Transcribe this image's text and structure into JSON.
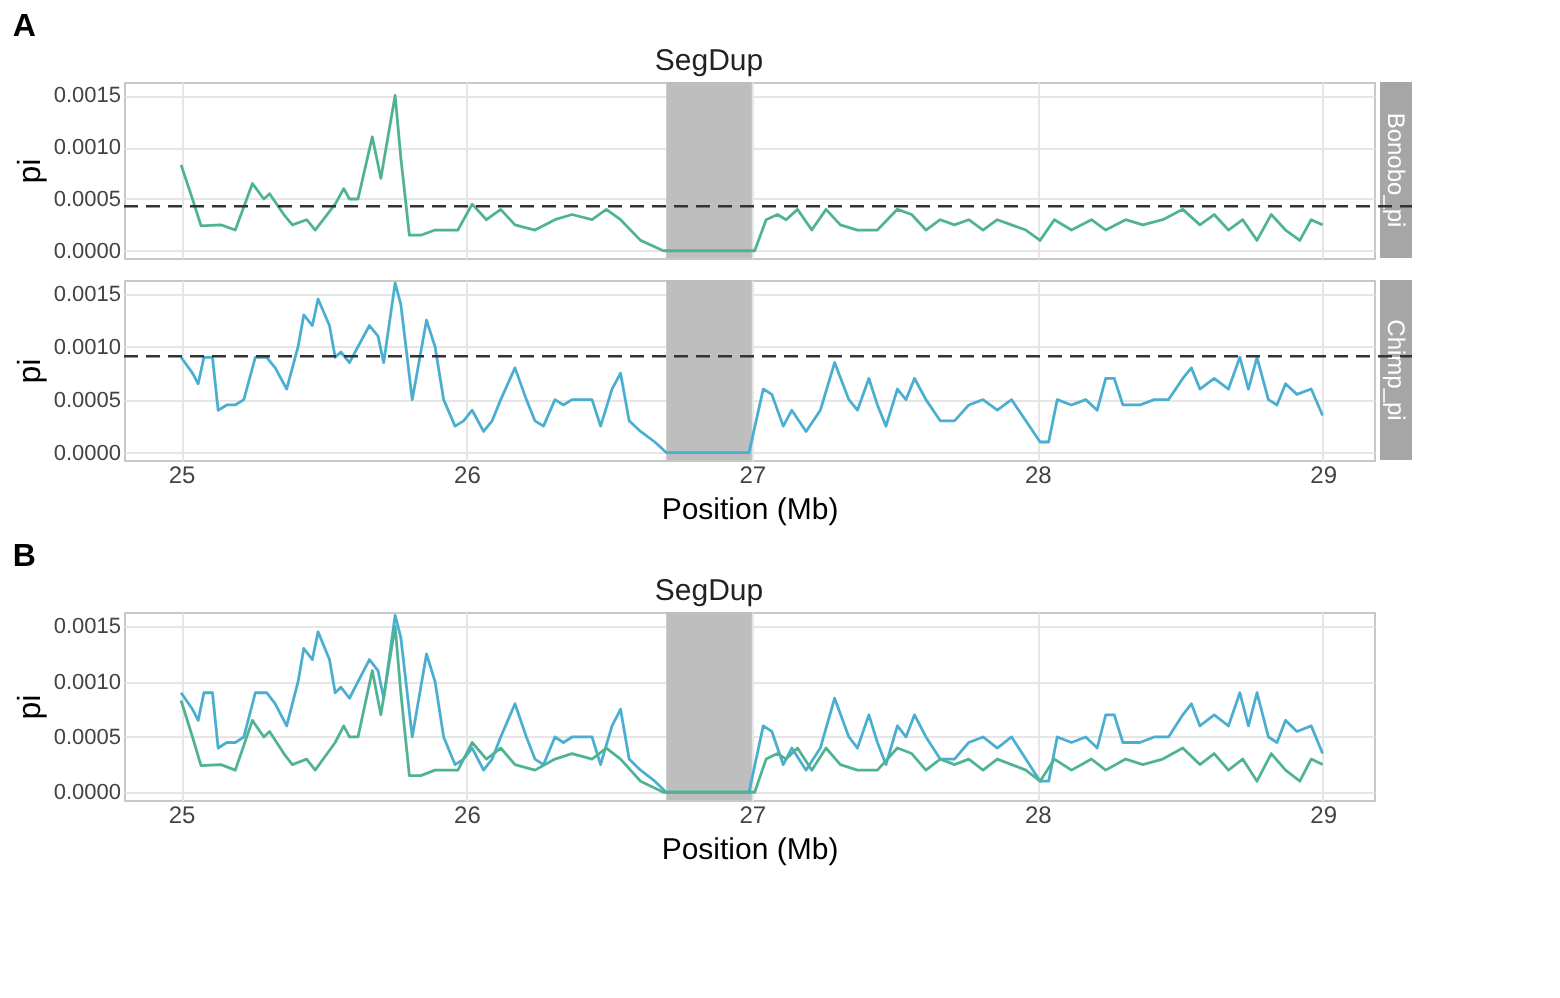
{
  "chart_data": [
    {
      "type": "line",
      "title": "A",
      "ylabel": "pi",
      "xlim": [
        24.8,
        29.18
      ],
      "xticks": [
        25,
        26,
        27,
        28,
        29
      ],
      "ylim": [
        -7e-05,
        0.00163
      ],
      "yticks": [
        {
          "value": 0,
          "label": "0.0000"
        },
        {
          "value": 0.0005,
          "label": "0.0005"
        },
        {
          "value": 0.001,
          "label": "0.0010"
        },
        {
          "value": 0.0015,
          "label": "0.0015"
        }
      ],
      "grid": true,
      "tick_labels": "y",
      "bands": [
        {
          "axis": "x",
          "from": 26.7,
          "to": 27.0,
          "label": "SegDup",
          "color": "#bebebe"
        }
      ],
      "ref_lines": [
        {
          "axis": "y",
          "value": 0.00043,
          "color": "#333333",
          "line_style": "dashed"
        }
      ],
      "series": [
        {
          "name": "Bonobo_pi",
          "color": "#4fb393",
          "x": [
            25.0,
            25.04,
            25.07,
            25.14,
            25.19,
            25.25,
            25.29,
            25.31,
            25.36,
            25.39,
            25.44,
            25.47,
            25.54,
            25.57,
            25.59,
            25.62,
            25.67,
            25.7,
            25.75,
            25.77,
            25.8,
            25.84,
            25.89,
            25.97,
            26.02,
            26.07,
            26.12,
            26.17,
            26.24,
            26.31,
            26.37,
            26.44,
            26.49,
            26.54,
            26.61,
            26.69,
            26.97,
            27.01,
            27.05,
            27.09,
            27.12,
            27.16,
            27.21,
            27.26,
            27.31,
            27.37,
            27.44,
            27.51,
            27.56,
            27.61,
            27.66,
            27.71,
            27.76,
            27.81,
            27.86,
            27.91,
            27.96,
            28.01,
            28.06,
            28.12,
            28.19,
            28.24,
            28.31,
            28.37,
            28.44,
            28.51,
            28.57,
            28.62,
            28.67,
            28.72,
            28.77,
            28.82,
            28.87,
            28.92,
            28.96,
            29.0
          ],
          "values": [
            0.00083,
            0.0005,
            0.00024,
            0.00025,
            0.0002,
            0.00065,
            0.0005,
            0.00055,
            0.00035,
            0.00025,
            0.0003,
            0.0002,
            0.00045,
            0.0006,
            0.0005,
            0.0005,
            0.0011,
            0.0007,
            0.0015,
            0.0009,
            0.00015,
            0.00015,
            0.0002,
            0.0002,
            0.00045,
            0.0003,
            0.0004,
            0.00025,
            0.0002,
            0.0003,
            0.00035,
            0.0003,
            0.0004,
            0.0003,
            0.0001,
            0.0,
            0.0,
            0.0,
            0.0003,
            0.00035,
            0.0003,
            0.0004,
            0.0002,
            0.0004,
            0.00025,
            0.0002,
            0.0002,
            0.0004,
            0.00035,
            0.0002,
            0.0003,
            0.00025,
            0.0003,
            0.0002,
            0.0003,
            0.00025,
            0.0002,
            0.0001,
            0.0003,
            0.0002,
            0.0003,
            0.0002,
            0.0003,
            0.00025,
            0.0003,
            0.0004,
            0.00025,
            0.00035,
            0.0002,
            0.0003,
            0.0001,
            0.00035,
            0.0002,
            0.0001,
            0.0003,
            0.00025
          ]
        }
      ]
    },
    {
      "type": "line",
      "ylabel": "pi",
      "xlabel": "Position (Mb)",
      "xlim": [
        24.8,
        29.18
      ],
      "xticks": [
        25,
        26,
        27,
        28,
        29
      ],
      "ylim": [
        -7e-05,
        0.00163
      ],
      "yticks": [
        {
          "value": 0,
          "label": "0.0000"
        },
        {
          "value": 0.0005,
          "label": "0.0005"
        },
        {
          "value": 0.001,
          "label": "0.0010"
        },
        {
          "value": 0.0015,
          "label": "0.0015"
        }
      ],
      "grid": true,
      "bands": [
        {
          "axis": "x",
          "from": 26.7,
          "to": 27.0,
          "color": "#bebebe"
        }
      ],
      "ref_lines": [
        {
          "axis": "y",
          "value": 0.00091,
          "color": "#333333",
          "line_style": "dashed"
        }
      ],
      "series": [
        {
          "name": "Chimp_pi",
          "color": "#4aaed0",
          "x": [
            25.0,
            25.04,
            25.06,
            25.08,
            25.11,
            25.13,
            25.16,
            25.19,
            25.22,
            25.26,
            25.3,
            25.33,
            25.37,
            25.41,
            25.43,
            25.46,
            25.48,
            25.52,
            25.54,
            25.56,
            25.59,
            25.62,
            25.66,
            25.69,
            25.71,
            25.75,
            25.77,
            25.81,
            25.83,
            25.86,
            25.89,
            25.92,
            25.96,
            25.99,
            26.02,
            26.06,
            26.09,
            26.12,
            26.17,
            26.21,
            26.24,
            26.27,
            26.31,
            26.34,
            26.37,
            26.41,
            26.44,
            26.47,
            26.51,
            26.54,
            26.57,
            26.61,
            26.66,
            26.7,
            26.99,
            27.04,
            27.07,
            27.11,
            27.14,
            27.19,
            27.24,
            27.29,
            27.34,
            27.37,
            27.41,
            27.44,
            27.47,
            27.51,
            27.54,
            27.57,
            27.61,
            27.66,
            27.71,
            27.76,
            27.81,
            27.86,
            27.91,
            27.96,
            28.01,
            28.04,
            28.07,
            28.12,
            28.17,
            28.21,
            28.24,
            28.27,
            28.3,
            28.36,
            28.41,
            28.46,
            28.51,
            28.54,
            28.57,
            28.62,
            28.67,
            28.71,
            28.74,
            28.77,
            28.81,
            28.84,
            28.87,
            28.91,
            28.96,
            29.0
          ],
          "values": [
            0.0009,
            0.00075,
            0.00065,
            0.0009,
            0.0009,
            0.0004,
            0.00045,
            0.00045,
            0.0005,
            0.0009,
            0.0009,
            0.0008,
            0.0006,
            0.001,
            0.0013,
            0.0012,
            0.00145,
            0.0012,
            0.0009,
            0.00095,
            0.00085,
            0.001,
            0.0012,
            0.0011,
            0.00085,
            0.0016,
            0.0014,
            0.0005,
            0.0008,
            0.00125,
            0.001,
            0.0005,
            0.00025,
            0.0003,
            0.0004,
            0.0002,
            0.0003,
            0.0005,
            0.0008,
            0.0005,
            0.0003,
            0.00025,
            0.0005,
            0.00045,
            0.0005,
            0.0005,
            0.0005,
            0.00025,
            0.0006,
            0.00075,
            0.0003,
            0.0002,
            0.0001,
            0.0,
            0.0,
            0.0006,
            0.00055,
            0.00025,
            0.0004,
            0.0002,
            0.0004,
            0.00085,
            0.0005,
            0.0004,
            0.0007,
            0.00045,
            0.00025,
            0.0006,
            0.0005,
            0.0007,
            0.0005,
            0.0003,
            0.0003,
            0.00045,
            0.0005,
            0.0004,
            0.0005,
            0.0003,
            0.0001,
            0.0001,
            0.0005,
            0.00045,
            0.0005,
            0.0004,
            0.0007,
            0.0007,
            0.00045,
            0.00045,
            0.0005,
            0.0005,
            0.0007,
            0.0008,
            0.0006,
            0.0007,
            0.0006,
            0.0009,
            0.0006,
            0.0009,
            0.0005,
            0.00045,
            0.00065,
            0.00055,
            0.0006,
            0.00035
          ]
        }
      ]
    },
    {
      "type": "line",
      "title": "B",
      "ylabel": "pi",
      "xlabel": "Position (Mb)",
      "xlim": [
        24.8,
        29.18
      ],
      "xticks": [
        25,
        26,
        27,
        28,
        29
      ],
      "ylim": [
        -7e-05,
        0.00163
      ],
      "yticks": [
        {
          "value": 0,
          "label": "0.0000"
        },
        {
          "value": 0.0005,
          "label": "0.0005"
        },
        {
          "value": 0.001,
          "label": "0.0010"
        },
        {
          "value": 0.0015,
          "label": "0.0015"
        }
      ],
      "grid": true,
      "bands": [
        {
          "axis": "x",
          "from": 26.7,
          "to": 27.0,
          "label": "SegDup",
          "color": "#bebebe"
        }
      ],
      "series": [
        {
          "color": "#4aaed0",
          "x": [
            25.0,
            25.04,
            25.06,
            25.08,
            25.11,
            25.13,
            25.16,
            25.19,
            25.22,
            25.26,
            25.3,
            25.33,
            25.37,
            25.41,
            25.43,
            25.46,
            25.48,
            25.52,
            25.54,
            25.56,
            25.59,
            25.62,
            25.66,
            25.69,
            25.71,
            25.75,
            25.77,
            25.81,
            25.83,
            25.86,
            25.89,
            25.92,
            25.96,
            25.99,
            26.02,
            26.06,
            26.09,
            26.12,
            26.17,
            26.21,
            26.24,
            26.27,
            26.31,
            26.34,
            26.37,
            26.41,
            26.44,
            26.47,
            26.51,
            26.54,
            26.57,
            26.61,
            26.66,
            26.7,
            26.99,
            27.04,
            27.07,
            27.11,
            27.14,
            27.19,
            27.24,
            27.29,
            27.34,
            27.37,
            27.41,
            27.44,
            27.47,
            27.51,
            27.54,
            27.57,
            27.61,
            27.66,
            27.71,
            27.76,
            27.81,
            27.86,
            27.91,
            27.96,
            28.01,
            28.04,
            28.07,
            28.12,
            28.17,
            28.21,
            28.24,
            28.27,
            28.3,
            28.36,
            28.41,
            28.46,
            28.51,
            28.54,
            28.57,
            28.62,
            28.67,
            28.71,
            28.74,
            28.77,
            28.81,
            28.84,
            28.87,
            28.91,
            28.96,
            29.0
          ],
          "values": [
            0.0009,
            0.00075,
            0.00065,
            0.0009,
            0.0009,
            0.0004,
            0.00045,
            0.00045,
            0.0005,
            0.0009,
            0.0009,
            0.0008,
            0.0006,
            0.001,
            0.0013,
            0.0012,
            0.00145,
            0.0012,
            0.0009,
            0.00095,
            0.00085,
            0.001,
            0.0012,
            0.0011,
            0.00085,
            0.0016,
            0.0014,
            0.0005,
            0.0008,
            0.00125,
            0.001,
            0.0005,
            0.00025,
            0.0003,
            0.0004,
            0.0002,
            0.0003,
            0.0005,
            0.0008,
            0.0005,
            0.0003,
            0.00025,
            0.0005,
            0.00045,
            0.0005,
            0.0005,
            0.0005,
            0.00025,
            0.0006,
            0.00075,
            0.0003,
            0.0002,
            0.0001,
            0.0,
            0.0,
            0.0006,
            0.00055,
            0.00025,
            0.0004,
            0.0002,
            0.0004,
            0.00085,
            0.0005,
            0.0004,
            0.0007,
            0.00045,
            0.00025,
            0.0006,
            0.0005,
            0.0007,
            0.0005,
            0.0003,
            0.0003,
            0.00045,
            0.0005,
            0.0004,
            0.0005,
            0.0003,
            0.0001,
            0.0001,
            0.0005,
            0.00045,
            0.0005,
            0.0004,
            0.0007,
            0.0007,
            0.00045,
            0.00045,
            0.0005,
            0.0005,
            0.0007,
            0.0008,
            0.0006,
            0.0007,
            0.0006,
            0.0009,
            0.0006,
            0.0009,
            0.0005,
            0.00045,
            0.00065,
            0.00055,
            0.0006,
            0.00035
          ]
        },
        {
          "color": "#4fb393",
          "x": [
            25.0,
            25.04,
            25.07,
            25.14,
            25.19,
            25.25,
            25.29,
            25.31,
            25.36,
            25.39,
            25.44,
            25.47,
            25.54,
            25.57,
            25.59,
            25.62,
            25.67,
            25.7,
            25.75,
            25.77,
            25.8,
            25.84,
            25.89,
            25.97,
            26.02,
            26.07,
            26.12,
            26.17,
            26.24,
            26.31,
            26.37,
            26.44,
            26.49,
            26.54,
            26.61,
            26.69,
            26.97,
            27.01,
            27.05,
            27.09,
            27.12,
            27.16,
            27.21,
            27.26,
            27.31,
            27.37,
            27.44,
            27.51,
            27.56,
            27.61,
            27.66,
            27.71,
            27.76,
            27.81,
            27.86,
            27.91,
            27.96,
            28.01,
            28.06,
            28.12,
            28.19,
            28.24,
            28.31,
            28.37,
            28.44,
            28.51,
            28.57,
            28.62,
            28.67,
            28.72,
            28.77,
            28.82,
            28.87,
            28.92,
            28.96,
            29.0
          ],
          "values": [
            0.00083,
            0.0005,
            0.00024,
            0.00025,
            0.0002,
            0.00065,
            0.0005,
            0.00055,
            0.00035,
            0.00025,
            0.0003,
            0.0002,
            0.00045,
            0.0006,
            0.0005,
            0.0005,
            0.0011,
            0.0007,
            0.0015,
            0.0009,
            0.00015,
            0.00015,
            0.0002,
            0.0002,
            0.00045,
            0.0003,
            0.0004,
            0.00025,
            0.0002,
            0.0003,
            0.00035,
            0.0003,
            0.0004,
            0.0003,
            0.0001,
            0.0,
            0.0,
            0.0,
            0.0003,
            0.00035,
            0.0003,
            0.0004,
            0.0002,
            0.0004,
            0.00025,
            0.0002,
            0.0002,
            0.0004,
            0.00035,
            0.0002,
            0.0003,
            0.00025,
            0.0003,
            0.0002,
            0.0003,
            0.00025,
            0.0002,
            0.0001,
            0.0003,
            0.0002,
            0.0003,
            0.0002,
            0.0003,
            0.00025,
            0.0003,
            0.0004,
            0.00025,
            0.00035,
            0.0002,
            0.0003,
            0.0001,
            0.00035,
            0.0002,
            0.0001,
            0.0003,
            0.00025
          ]
        }
      ]
    }
  ]
}
